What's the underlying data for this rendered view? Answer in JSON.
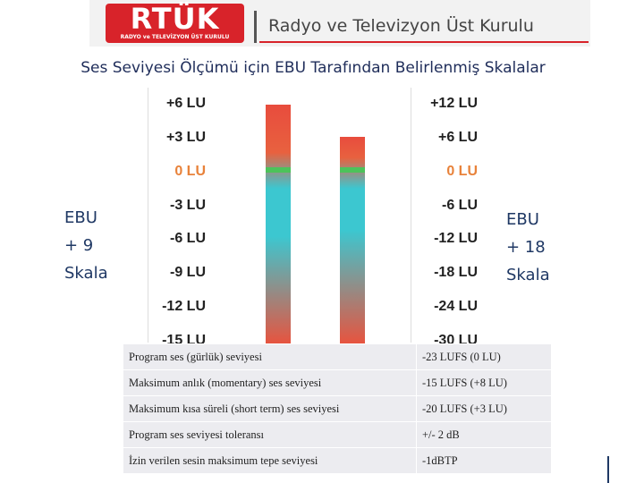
{
  "header": {
    "logo_mark": "RTÜK",
    "logo_subtitle": "RADYO ve TELEVİZYON ÜST KURULU",
    "organization": "Radyo ve Televizyon Üst Kurulu"
  },
  "title": "Ses Seviyesi Ölçümü için EBU Tarafından Belirlenmiş Skalalar",
  "scales": {
    "left": {
      "label": [
        "EBU",
        "+ 9",
        "Skala"
      ],
      "ticks": [
        "+6 LU",
        "+3 LU",
        "0 LU",
        "-3 LU",
        "-6 LU",
        "-9 LU",
        "-12 LU",
        "-15 LU"
      ]
    },
    "right": {
      "label": [
        "EBU",
        "+ 18",
        "Skala"
      ],
      "ticks": [
        "+12 LU",
        "+6 LU",
        "0 LU",
        "-6 LU",
        "-12 LU",
        "-18 LU",
        "-24 LU",
        "-30 LU"
      ]
    }
  },
  "table": {
    "rows": [
      [
        "Program ses (gürlük) seviyesi",
        "-23 LUFS (0 LU)"
      ],
      [
        "Maksimum anlık (momentary) ses seviyesi",
        "-15 LUFS (+8 LU)"
      ],
      [
        "Maksimum kısa süreli (short term) ses seviyesi",
        "-20 LUFS (+3 LU)"
      ],
      [
        "Program ses seviyesi toleransı",
        "+/- 2 dB"
      ],
      [
        "İzin verilen sesin maksimum tepe seviyesi",
        "-1dBTP"
      ]
    ]
  }
}
